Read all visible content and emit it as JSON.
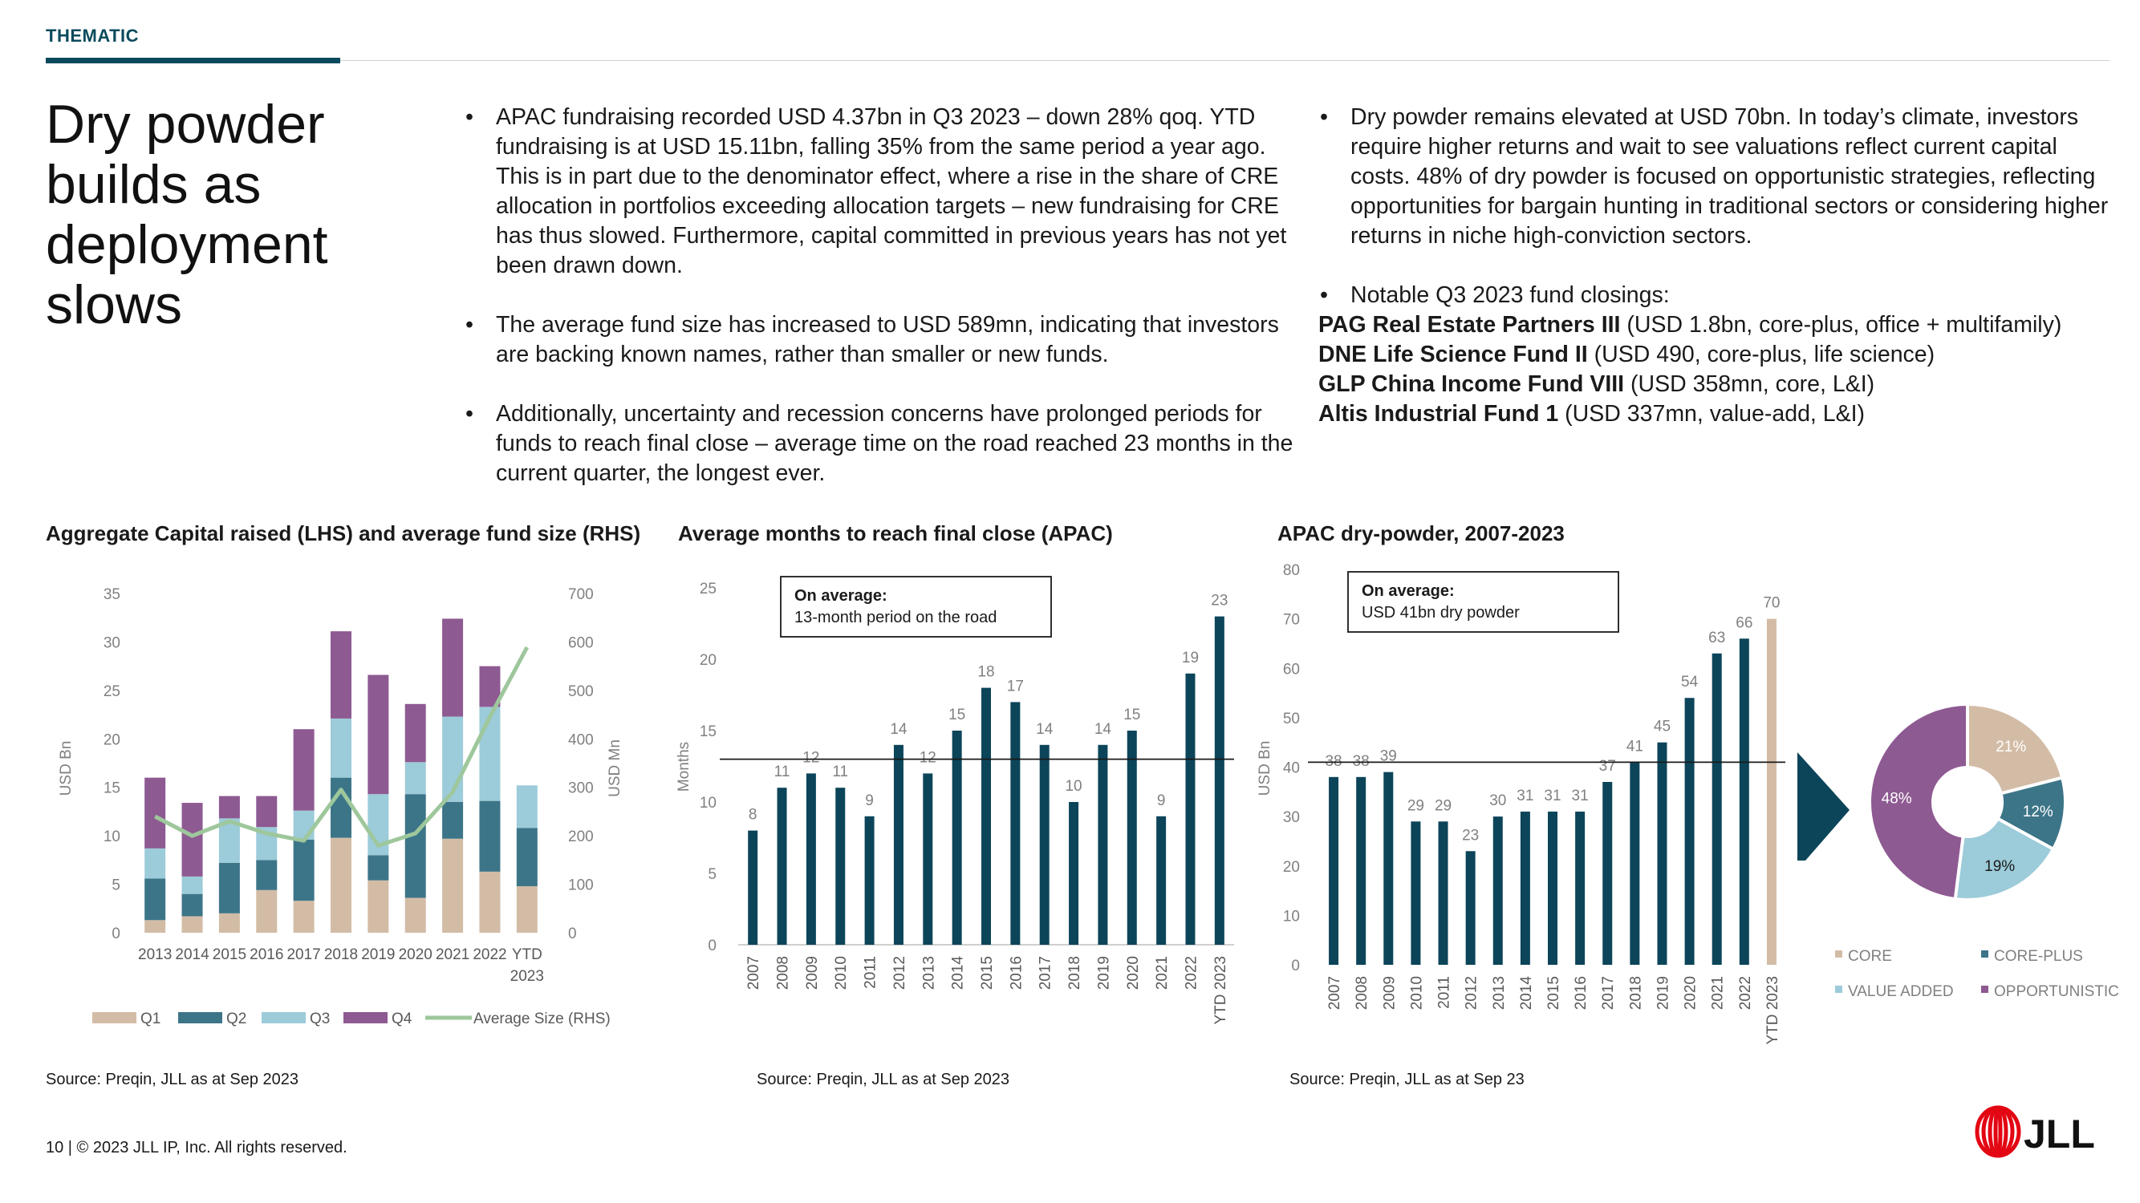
{
  "header": {
    "section": "THEMATIC"
  },
  "headline": "Dry powder builds as deployment slows",
  "left_bullets": [
    "APAC fundraising recorded USD 4.37bn in Q3 2023 – down 28% qoq. YTD fundraising is at USD 15.11bn, falling 35% from the same period a year ago. This is in part due to the denominator effect, where a rise in the share of CRE allocation in portfolios exceeding allocation targets – new fundraising for CRE has thus slowed. Furthermore, capital committed in previous years has not yet been drawn down.",
    "The average fund size has increased to USD 589mn, indicating that investors are backing known names, rather than smaller or new funds.",
    "Additionally, uncertainty and recession concerns have prolonged periods for funds to reach final close – average time on the road reached 23 months in the current quarter, the longest ever."
  ],
  "right_bullets": [
    "Dry powder remains elevated at USD 70bn. In today’s climate, investors require higher returns and wait to see valuations reflect current capital costs. 48% of dry powder is focused on opportunistic strategies, reflecting opportunities for bargain hunting in traditional sectors or considering higher returns in niche high-conviction sectors.",
    "Notable Q3 2023 fund closings:"
  ],
  "fund_closings": [
    {
      "name": "PAG Real Estate Partners III",
      "detail": " (USD 1.8bn, core-plus, office + multifamily)"
    },
    {
      "name": "DNE Life Science Fund II",
      "detail": " (USD 490, core-plus, life science)"
    },
    {
      "name": "GLP China Income Fund VIII",
      "detail": " (USD 358mn, core, L&I)"
    },
    {
      "name": "Altis Industrial Fund 1",
      "detail": " (USD 337mn, value-add, L&I)"
    }
  ],
  "colors": {
    "q1": "#d3bca6",
    "q2": "#3d7588",
    "q3": "#9ccbd9",
    "q4": "#8e5a92",
    "avg_line": "#9ec79c",
    "bar": "#0c4559",
    "ytd_bar": "#d3bca6",
    "core": "#d3bca6",
    "core_plus": "#3d7588",
    "value_added": "#9ccbd9",
    "opportunistic": "#8e5a92",
    "axis_text": "#808080"
  },
  "chart_data": [
    {
      "type": "bar",
      "title": "Aggregate Capital raised (LHS) and average fund size (RHS)",
      "ylabel": "USD Bn",
      "y2label": "USD Mn",
      "ylim": [
        0,
        35
      ],
      "y2lim": [
        0,
        700
      ],
      "yticks": [
        "0",
        "5",
        "10",
        "15",
        "20",
        "25",
        "30",
        "35"
      ],
      "y2ticks": [
        "0",
        "100",
        "200",
        "300",
        "400",
        "500",
        "600",
        "700"
      ],
      "categories": [
        "2013",
        "2014",
        "2015",
        "2016",
        "2017",
        "2018",
        "2019",
        "2020",
        "2021",
        "2022",
        "YTD 2023"
      ],
      "series": [
        {
          "name": "Q1",
          "values": [
            1.3,
            1.7,
            2.0,
            4.4,
            3.3,
            9.8,
            5.4,
            3.6,
            9.7,
            6.3,
            4.8
          ]
        },
        {
          "name": "Q2",
          "values": [
            4.3,
            2.3,
            5.2,
            3.1,
            6.3,
            6.2,
            2.6,
            10.7,
            3.8,
            7.3,
            6.0
          ]
        },
        {
          "name": "Q3",
          "values": [
            3.1,
            1.8,
            4.6,
            3.4,
            3.0,
            6.1,
            6.3,
            3.3,
            8.8,
            9.7,
            4.4
          ]
        },
        {
          "name": "Q4",
          "values": [
            7.3,
            7.6,
            2.3,
            3.2,
            8.4,
            9.0,
            12.3,
            6.0,
            10.1,
            4.2,
            0
          ]
        },
        {
          "name": "Average Size (RHS)",
          "axis": "right",
          "values": [
            240,
            200,
            230,
            205,
            190,
            295,
            180,
            205,
            290,
            445,
            589
          ]
        }
      ],
      "legend": "bottom"
    },
    {
      "type": "bar",
      "title": "Average months to reach final close (APAC)",
      "ylabel": "Months",
      "ylim": [
        0,
        25
      ],
      "yticks": [
        "0",
        "5",
        "10",
        "15",
        "20",
        "25"
      ],
      "categories": [
        "2007",
        "2008",
        "2009",
        "2010",
        "2011",
        "2012",
        "2013",
        "2014",
        "2015",
        "2016",
        "2017",
        "2018",
        "2019",
        "2020",
        "2021",
        "2022",
        "YTD 2023"
      ],
      "values": [
        8,
        11,
        12,
        11,
        9,
        14,
        12,
        15,
        18,
        17,
        14,
        10,
        14,
        15,
        9,
        19,
        23
      ],
      "reference_line": 13,
      "annotation": {
        "title": "On average:",
        "text": "13-month period on the road"
      }
    },
    {
      "type": "bar",
      "title": "APAC dry-powder, 2007-2023",
      "ylabel": "USD Bn",
      "ylim": [
        0,
        80
      ],
      "yticks": [
        "0",
        "10",
        "20",
        "30",
        "40",
        "50",
        "60",
        "70",
        "80"
      ],
      "categories": [
        "2007",
        "2008",
        "2009",
        "2010",
        "2011",
        "2012",
        "2013",
        "2014",
        "2015",
        "2016",
        "2017",
        "2018",
        "2019",
        "2020",
        "2021",
        "2022",
        "YTD 2023"
      ],
      "values": [
        38,
        38,
        39,
        29,
        29,
        23,
        30,
        31,
        31,
        31,
        37,
        41,
        45,
        54,
        63,
        66,
        70
      ],
      "reference_line": 41,
      "annotation": {
        "title": "On average:",
        "text": "USD 41bn dry powder"
      }
    },
    {
      "type": "pie",
      "donut": true,
      "labels": [
        "CORE",
        "CORE-PLUS",
        "VALUE ADDED",
        "OPPORTUNISTIC"
      ],
      "values": [
        21,
        12,
        19,
        48
      ],
      "value_labels": [
        "21%",
        "12%",
        "19%",
        "48%"
      ],
      "legend": "bottom"
    }
  ],
  "sources": {
    "chart1": "Source: Preqin, JLL as at Sep 2023",
    "chart2": "Source: Preqin, JLL as at Sep 2023",
    "chart3": "Source: Preqin, JLL as at Sep 23"
  },
  "footer": {
    "text": "10  |  © 2023 JLL IP, Inc. All rights reserved."
  },
  "logo": {
    "text": "JLL",
    "color": "#e30613"
  }
}
